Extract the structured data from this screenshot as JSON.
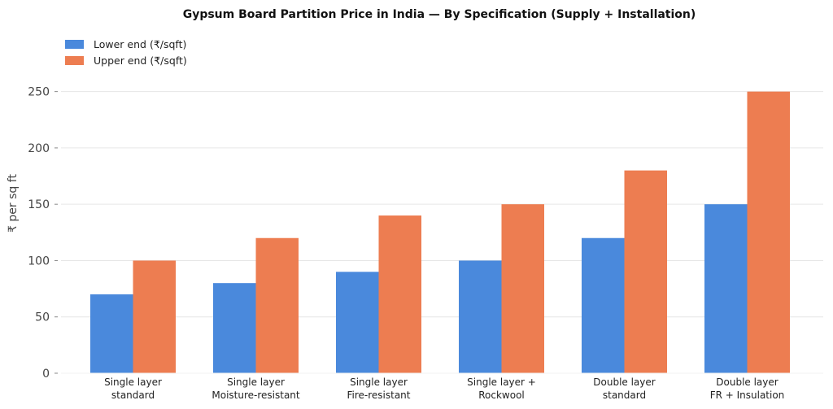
{
  "chart_data": {
    "type": "bar",
    "title": "Gypsum Board Partition Price in India — By Specification (Supply + Installation)",
    "xlabel": "",
    "ylabel": "₹ per sq ft",
    "ylim": [
      0,
      275
    ],
    "yticks": [
      0,
      50,
      100,
      150,
      200,
      250
    ],
    "grid": true,
    "legend_position": "top-left",
    "categories": [
      [
        "Single layer",
        "standard"
      ],
      [
        "Single layer",
        "Moisture-resistant"
      ],
      [
        "Single layer",
        "Fire-resistant"
      ],
      [
        "Single layer +",
        "Rockwool"
      ],
      [
        "Double layer",
        "standard"
      ],
      [
        "Double layer",
        "FR + Insulation"
      ]
    ],
    "series": [
      {
        "name": "Lower end (₹/sqft)",
        "color": "#4a89dc",
        "values": [
          70,
          80,
          90,
          100,
          120,
          150
        ]
      },
      {
        "name": "Upper end (₹/sqft)",
        "color": "#ed7d51",
        "values": [
          100,
          120,
          140,
          150,
          180,
          250
        ]
      }
    ]
  }
}
